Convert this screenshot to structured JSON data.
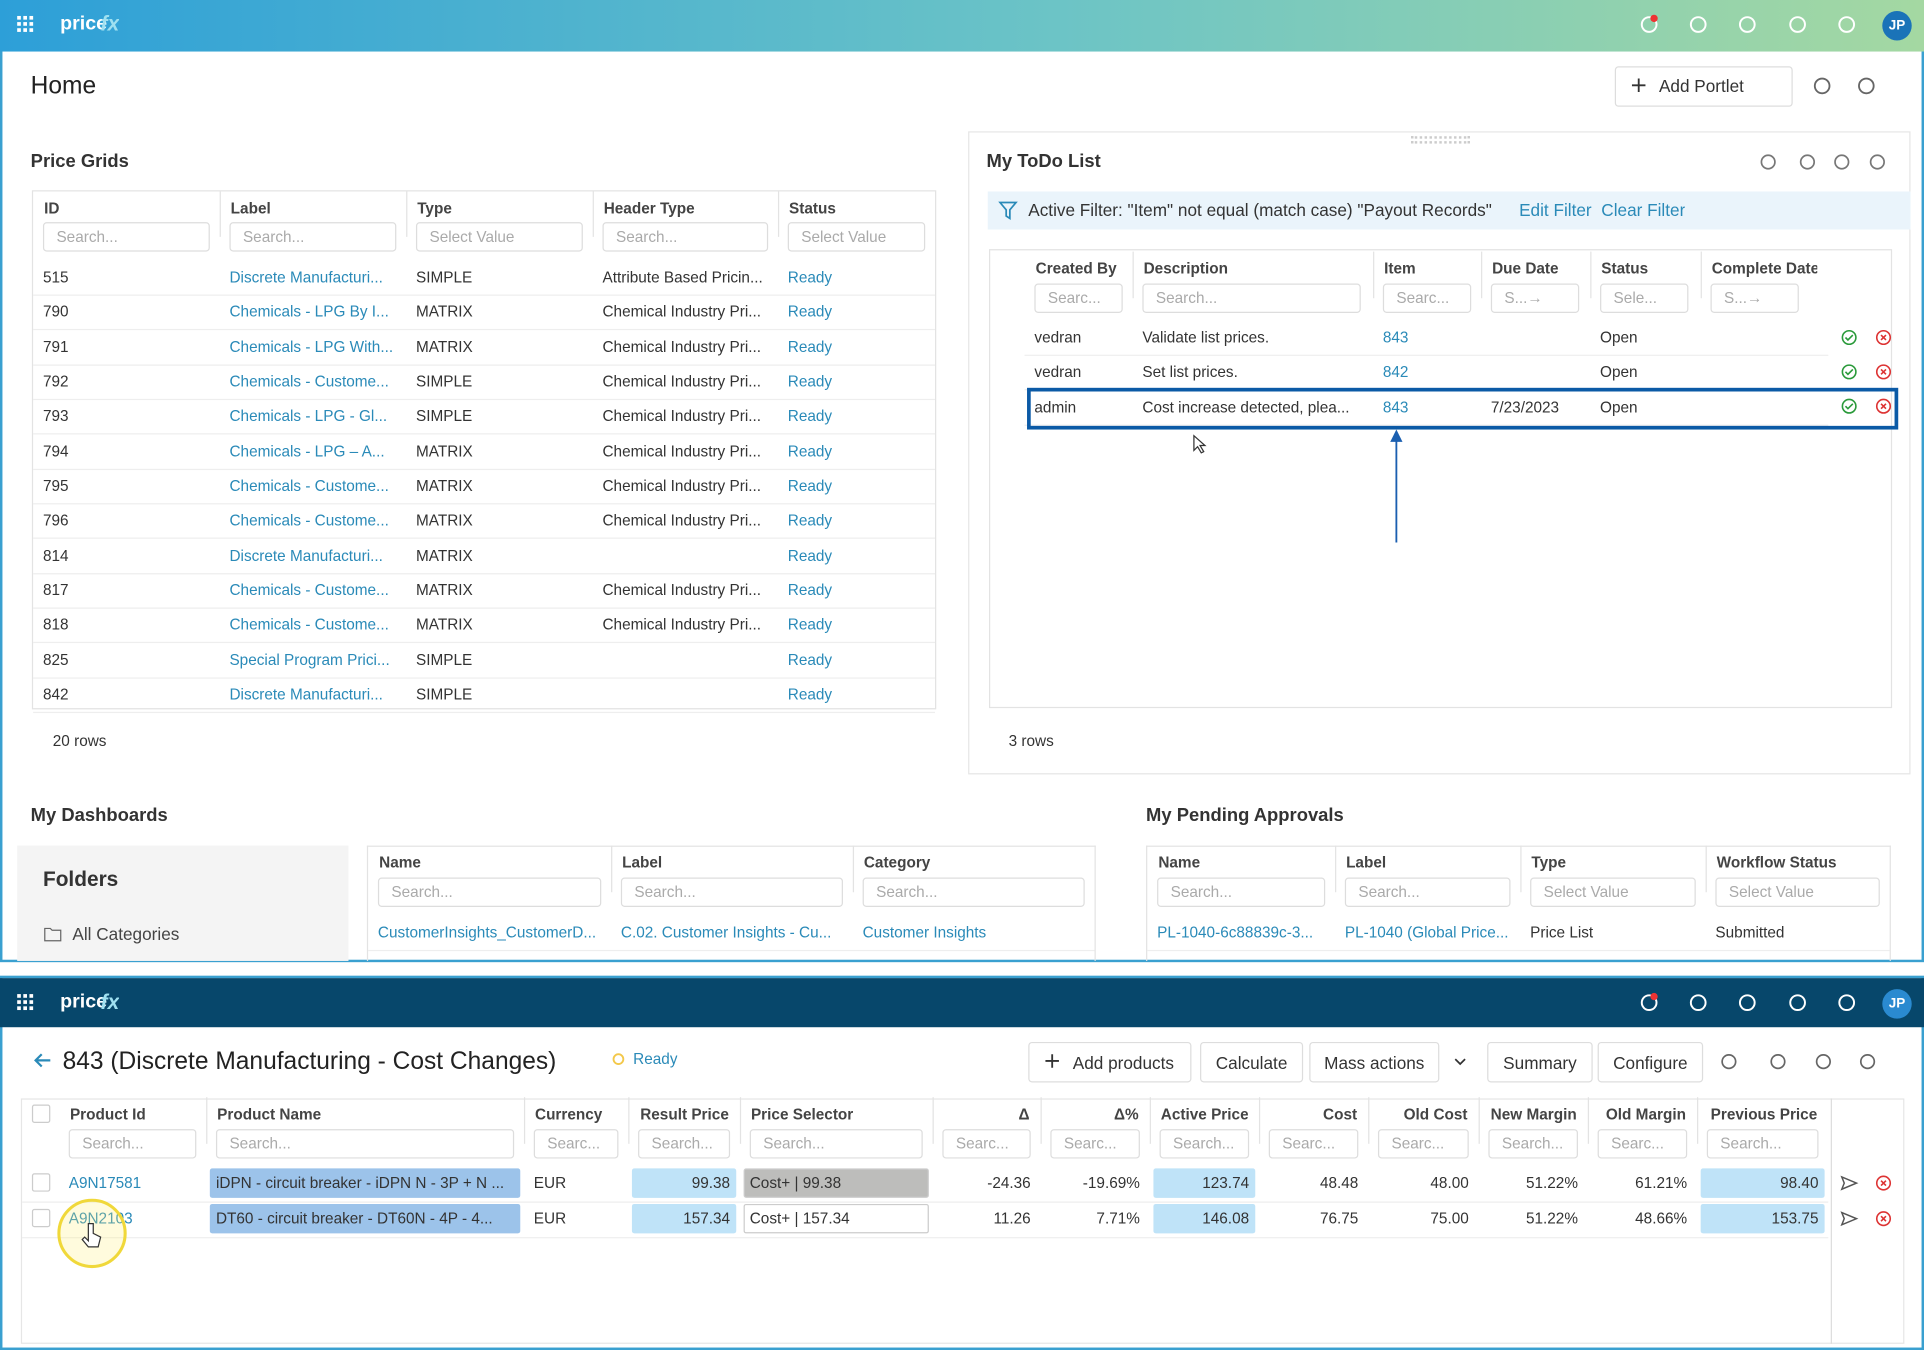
{
  "top_app": {
    "logo": [
      "price",
      "fx"
    ],
    "avatar": "JP",
    "page_title": "Home",
    "add_portlet": "Add Portlet",
    "price_grids": {
      "title": "Price Grids",
      "columns": [
        "ID",
        "Label",
        "Type",
        "Header Type",
        "Status"
      ],
      "filters": [
        "Search...",
        "Search...",
        "Select Value",
        "Search...",
        "Select Value"
      ],
      "rows": [
        [
          "515",
          "Discrete Manufacturi...",
          "SIMPLE",
          "Attribute Based Pricin...",
          "Ready"
        ],
        [
          "790",
          "Chemicals - LPG By I...",
          "MATRIX",
          "Chemical Industry Pri...",
          "Ready"
        ],
        [
          "791",
          "Chemicals - LPG With...",
          "MATRIX",
          "Chemical Industry Pri...",
          "Ready"
        ],
        [
          "792",
          "Chemicals - Custome...",
          "SIMPLE",
          "Chemical Industry Pri...",
          "Ready"
        ],
        [
          "793",
          "Chemicals - LPG - Gl...",
          "SIMPLE",
          "Chemical Industry Pri...",
          "Ready"
        ],
        [
          "794",
          "Chemicals - LPG – A...",
          "MATRIX",
          "Chemical Industry Pri...",
          "Ready"
        ],
        [
          "795",
          "Chemicals - Custome...",
          "MATRIX",
          "Chemical Industry Pri...",
          "Ready"
        ],
        [
          "796",
          "Chemicals - Custome...",
          "MATRIX",
          "Chemical Industry Pri...",
          "Ready"
        ],
        [
          "814",
          "Discrete Manufacturi...",
          "MATRIX",
          null,
          "Ready"
        ],
        [
          "817",
          "Chemicals - Custome...",
          "MATRIX",
          "Chemical Industry Pri...",
          "Ready"
        ],
        [
          "818",
          "Chemicals - Custome...",
          "MATRIX",
          "Chemical Industry Pri...",
          "Ready"
        ],
        [
          "825",
          "Special Program Prici...",
          "SIMPLE",
          null,
          "Ready"
        ],
        [
          "842",
          "Discrete Manufacturi...",
          "SIMPLE",
          null,
          "Ready"
        ]
      ],
      "footer": "20 rows"
    },
    "todo": {
      "title": "My ToDo List",
      "active_filter": "Active Filter: \"Item\" not equal (match case) \"Payout Records\"",
      "edit_filter": "Edit Filter",
      "clear_filter": "Clear Filter",
      "columns": [
        "Created By",
        "Description",
        "Item",
        "Due Date",
        "Status",
        "Complete Date"
      ],
      "filters": [
        "Searc...",
        "Search...",
        "Searc...",
        "S...→",
        "Sele...",
        "S...→"
      ],
      "rows": [
        [
          "vedran",
          "Validate list prices.",
          "843",
          null,
          "Open",
          null
        ],
        [
          "vedran",
          "Set list prices.",
          "842",
          null,
          "Open",
          null
        ],
        [
          "admin",
          "Cost increase detected, plea...",
          "843",
          "7/23/2023",
          "Open",
          null
        ]
      ],
      "footer": "3 rows"
    },
    "dashboards": {
      "title": "My Dashboards",
      "folders": "Folders",
      "all_categories": "All Categories",
      "columns": [
        "Name",
        "Label",
        "Category"
      ],
      "filters": [
        "Search...",
        "Search...",
        "Search..."
      ],
      "rows": [
        [
          "CustomerInsights_CustomerD...",
          "C.02. Customer Insights - Cu...",
          "Customer Insights"
        ]
      ]
    },
    "approvals": {
      "title": "My Pending Approvals",
      "columns": [
        "Name",
        "Label",
        "Type",
        "Workflow Status"
      ],
      "filters": [
        "Search...",
        "Search...",
        "Select Value",
        "Select Value"
      ],
      "rows": [
        [
          "PL-1040-6c88839c-3...",
          "PL-1040 (Global Price...",
          "Price List",
          "Submitted"
        ]
      ]
    }
  },
  "bottom_app": {
    "logo": [
      "price",
      "fx"
    ],
    "avatar": "JP",
    "title": "843 (Discrete Manufacturing - Cost Changes)",
    "status": "Ready",
    "buttons": [
      "Add products",
      "Calculate",
      "Mass actions",
      "Summary",
      "Configure"
    ],
    "columns": [
      "Product Id",
      "Product Name",
      "Currency",
      "Result Price",
      "Price Selector",
      "Δ",
      "Δ%",
      "Active Price",
      "Cost",
      "Old Cost",
      "New Margin",
      "Old Margin",
      "Previous Price"
    ],
    "filters": [
      "Search...",
      "Search...",
      "Searc...",
      "Search...",
      "Search...",
      "Searc...",
      "Searc...",
      "Search...",
      "Searc...",
      "Searc...",
      "Search...",
      "Searc...",
      "Search..."
    ],
    "rows": [
      [
        "A9N17581",
        "iDPN - circuit breaker - iDPN N - 3P + N ...",
        "EUR",
        "99.38",
        "Cost+ | 99.38",
        "-24.36",
        "-19.69%",
        "123.74",
        "48.48",
        "48.00",
        "51.22%",
        "61.21%",
        "98.40"
      ],
      [
        "A9N2103",
        "DT60 - circuit breaker - DT60N - 4P - 4...",
        "EUR",
        "157.34",
        "Cost+ | 157.34",
        "11.26",
        "7.71%",
        "146.08",
        "76.75",
        "75.00",
        "51.22%",
        "48.66%",
        "153.75"
      ]
    ]
  }
}
